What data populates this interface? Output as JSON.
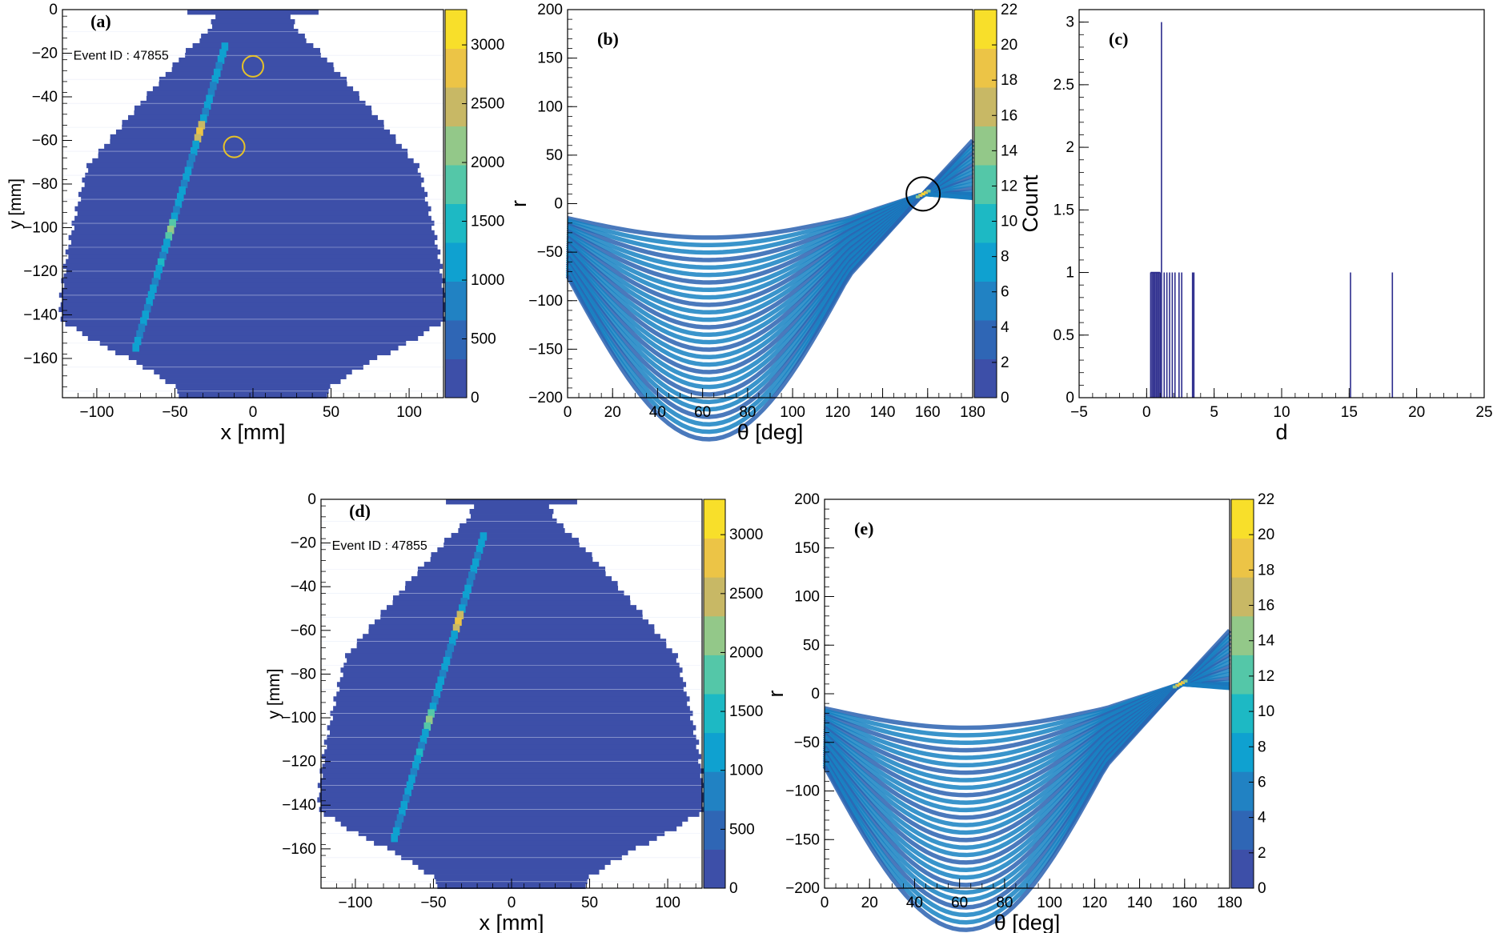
{
  "chart_data": [
    {
      "type": "heatmap",
      "panel": "(a)",
      "annotation": "Event ID : 47855",
      "xlabel": "x [mm]",
      "ylabel": "y [mm]",
      "xlim": [
        -122,
        122
      ],
      "ylim": [
        -178,
        0
      ],
      "xticks": [
        -100,
        -50,
        0,
        50,
        100
      ],
      "yticks": [
        0,
        -20,
        -40,
        -60,
        -80,
        -100,
        -120,
        -140,
        -160
      ],
      "zlim": [
        0,
        3300
      ],
      "zticks": [
        0,
        500,
        1000,
        1500,
        2000,
        2500,
        3000
      ],
      "colormap": [
        "#3d4fa8",
        "#2f66b5",
        "#2182c3",
        "#0fa1d0",
        "#1db9c4",
        "#54c7a8",
        "#93c889",
        "#c8b865",
        "#ecc446",
        "#f8df2a"
      ],
      "footprint_halfwidth": [
        [
          0,
          22
        ],
        [
          -8,
          28
        ],
        [
          -16,
          40
        ],
        [
          -30,
          58
        ],
        [
          -50,
          82
        ],
        [
          -70,
          105
        ],
        [
          -90,
          112
        ],
        [
          -110,
          118
        ],
        [
          -130,
          122
        ],
        [
          -140,
          122
        ],
        [
          -150,
          100
        ],
        [
          -160,
          72
        ],
        [
          -170,
          50
        ],
        [
          -178,
          42
        ]
      ],
      "track": [
        [
          -18,
          -17
        ],
        [
          -75,
          -155
        ]
      ],
      "hot_spots": [
        {
          "x": -33,
          "y": -57,
          "level": 0.95
        },
        {
          "x": -52,
          "y": -101,
          "level": 0.7
        },
        {
          "x": -58,
          "y": -117,
          "level": 0.5
        }
      ],
      "markers": [
        {
          "x": 0,
          "y": -26,
          "shape": "circle",
          "color": "#e6c229"
        },
        {
          "x": -12,
          "y": -63,
          "shape": "circle",
          "color": "#e6c229"
        }
      ]
    },
    {
      "type": "heatmap",
      "panel": "(b)",
      "xlabel": "θ [deg]",
      "ylabel": "r",
      "xlim": [
        0,
        180
      ],
      "ylim": [
        -200,
        200
      ],
      "xticks": [
        0,
        20,
        40,
        60,
        80,
        100,
        120,
        140,
        160,
        180
      ],
      "yticks": [
        -200,
        -150,
        -100,
        -50,
        0,
        50,
        100,
        150,
        200
      ],
      "zlim": [
        0,
        22
      ],
      "zticks": [
        0,
        2,
        4,
        6,
        8,
        10,
        12,
        14,
        16,
        18,
        20,
        22
      ],
      "peak": {
        "theta": 158,
        "r": 10
      },
      "markers": [
        {
          "x": 158,
          "y": 10,
          "shape": "circle",
          "color": "#000000"
        }
      ]
    },
    {
      "type": "bar",
      "panel": "(c)",
      "xlabel": "d",
      "ylabel": "Count",
      "xlim": [
        -5,
        25
      ],
      "ylim": [
        0,
        3.1
      ],
      "xticks": [
        -5,
        0,
        5,
        10,
        15,
        20,
        25
      ],
      "yticks": [
        0,
        0.5,
        1,
        1.5,
        2,
        2.5,
        3
      ],
      "x": [
        0.3,
        0.4,
        0.5,
        0.6,
        0.7,
        0.8,
        0.9,
        1.0,
        1.1,
        1.3,
        1.5,
        1.7,
        1.9,
        2.1,
        2.4,
        2.6,
        3.4,
        3.5,
        15.1,
        18.2
      ],
      "values": [
        1,
        1,
        1,
        1,
        1,
        1,
        1,
        1,
        3,
        1,
        1,
        1,
        1,
        1,
        1,
        1,
        1,
        1,
        1,
        1
      ],
      "color": "#2b2b8c"
    },
    {
      "type": "heatmap",
      "panel": "(d)",
      "annotation": "Event ID : 47855",
      "xlabel": "x [mm]",
      "ylabel": "y [mm]",
      "xlim": [
        -122,
        122
      ],
      "ylim": [
        -178,
        0
      ],
      "xticks": [
        -100,
        -50,
        0,
        50,
        100
      ],
      "yticks": [
        0,
        -20,
        -40,
        -60,
        -80,
        -100,
        -120,
        -140,
        -160
      ],
      "zlim": [
        0,
        3300
      ],
      "zticks": [
        0,
        500,
        1000,
        1500,
        2000,
        2500,
        3000
      ],
      "track": [
        [
          -18,
          -17
        ],
        [
          -75,
          -155
        ]
      ],
      "hot_spots": [
        {
          "x": -33,
          "y": -57,
          "level": 0.95
        },
        {
          "x": -52,
          "y": -101,
          "level": 0.7
        },
        {
          "x": -58,
          "y": -117,
          "level": 0.5
        }
      ]
    },
    {
      "type": "heatmap",
      "panel": "(e)",
      "xlabel": "θ [deg]",
      "ylabel": "r",
      "xlim": [
        0,
        180
      ],
      "ylim": [
        -200,
        200
      ],
      "xticks": [
        0,
        20,
        40,
        60,
        80,
        100,
        120,
        140,
        160,
        180
      ],
      "yticks": [
        -200,
        -150,
        -100,
        -50,
        0,
        50,
        100,
        150,
        200
      ],
      "zlim": [
        0,
        22
      ],
      "zticks": [
        0,
        2,
        4,
        6,
        8,
        10,
        12,
        14,
        16,
        18,
        20,
        22
      ],
      "peak": {
        "theta": 158,
        "r": 10
      }
    }
  ]
}
